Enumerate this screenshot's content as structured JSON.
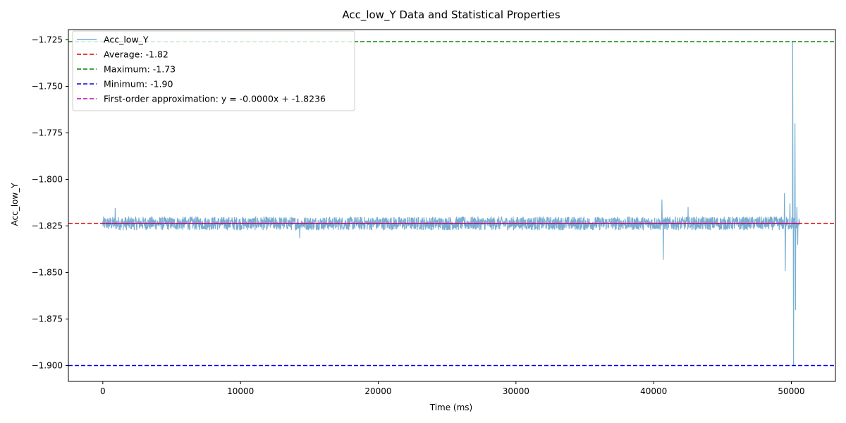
{
  "chart_data": {
    "type": "line",
    "title": "Acc_low_Y Data and Statistical Properties",
    "xlabel": "Time (ms)",
    "ylabel": "Acc_low_Y",
    "xlim": [
      -2500,
      53200
    ],
    "ylim": [
      -1.9085,
      -1.7195
    ],
    "x_ticks": [
      0,
      10000,
      20000,
      30000,
      40000,
      50000
    ],
    "y_ticks": [
      -1.9,
      -1.875,
      -1.85,
      -1.825,
      -1.8,
      -1.775,
      -1.75,
      -1.725
    ],
    "x_tick_labels": [
      "0",
      "10000",
      "20000",
      "30000",
      "40000",
      "50000"
    ],
    "y_tick_labels": [
      "−1.900",
      "−1.875",
      "−1.850",
      "−1.825",
      "−1.800",
      "−1.775",
      "−1.750",
      "−1.725"
    ],
    "series": [
      {
        "name": "Acc_low_Y",
        "color": "#77aed2",
        "x_start": 0,
        "x_end": 50600,
        "baseline": -1.8236,
        "noise_amplitude": 0.0035,
        "spikes": [
          {
            "x": 900,
            "y": -1.8155
          },
          {
            "x": 14300,
            "y": -1.8315
          },
          {
            "x": 40600,
            "y": -1.811
          },
          {
            "x": 40700,
            "y": -1.843
          },
          {
            "x": 42500,
            "y": -1.815
          },
          {
            "x": 49500,
            "y": -1.8075
          },
          {
            "x": 49550,
            "y": -1.849
          },
          {
            "x": 49900,
            "y": -1.813
          },
          {
            "x": 50100,
            "y": -1.726
          },
          {
            "x": 50150,
            "y": -1.9
          },
          {
            "x": 50250,
            "y": -1.77
          },
          {
            "x": 50300,
            "y": -1.87
          },
          {
            "x": 50400,
            "y": -1.815
          },
          {
            "x": 50450,
            "y": -1.835
          }
        ]
      }
    ],
    "reference_lines": [
      {
        "name": "Average: -1.82",
        "y": -1.8236,
        "color": "#e00000",
        "style": "dashed"
      },
      {
        "name": "Maximum: -1.73",
        "y": -1.726,
        "color": "#008000",
        "style": "dashed"
      },
      {
        "name": "Minimum: -1.90",
        "y": -1.9,
        "color": "#0000ee",
        "style": "dashed"
      },
      {
        "name": "First-order approximation: y = -0.0000x + -1.8236",
        "y": -1.8236,
        "color": "#c000c0",
        "style": "dashed",
        "x_range": [
          0,
          50600
        ]
      }
    ],
    "legend": {
      "placement": "top-left",
      "entries": [
        {
          "label": "Acc_low_Y",
          "color": "#77aed2",
          "style": "solid"
        },
        {
          "label": "Average: -1.82",
          "color": "#e00000",
          "style": "dashed"
        },
        {
          "label": "Maximum: -1.73",
          "color": "#008000",
          "style": "dashed"
        },
        {
          "label": "Minimum: -1.90",
          "color": "#0000ee",
          "style": "dashed"
        },
        {
          "label": "First-order approximation: y = -0.0000x + -1.8236",
          "color": "#c000c0",
          "style": "dashed"
        }
      ]
    },
    "grid": false
  }
}
